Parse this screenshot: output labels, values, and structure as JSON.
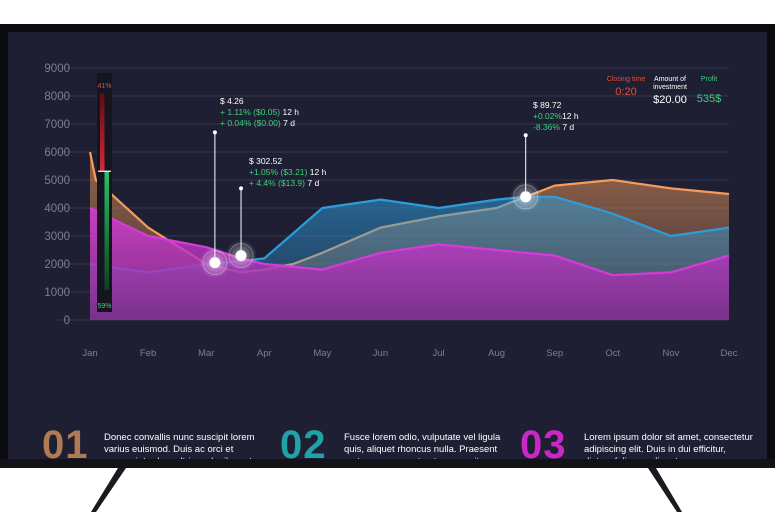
{
  "chart_data": {
    "type": "area",
    "title": "",
    "xlabel": "",
    "ylabel": "",
    "categories": [
      "Jan",
      "Feb",
      "Mar",
      "Apr",
      "May",
      "Jun",
      "Jul",
      "Aug",
      "Sep",
      "Oct",
      "Nov",
      "Dec"
    ],
    "yticks": [
      "9000",
      "8000",
      "7000",
      "6000",
      "5000",
      "4000",
      "3000",
      "2000",
      "1000",
      "0"
    ],
    "ylim": [
      0,
      9000
    ],
    "series": [
      {
        "name": "orange",
        "color": "#f39c5b",
        "x": [
          0,
          0.1,
          1,
          2,
          2.6,
          3,
          3.5,
          4,
          5,
          6,
          7,
          7.5,
          8,
          9,
          10,
          11
        ],
        "values": [
          6000,
          5000,
          3300,
          2000,
          1700,
          1800,
          2000,
          2400,
          3300,
          3700,
          4000,
          4400,
          4800,
          5000,
          4700,
          4500
        ]
      },
      {
        "name": "blue",
        "color": "#2d9cdb",
        "x": [
          0,
          1,
          2,
          2.6,
          3,
          4,
          5,
          6,
          7,
          7.5,
          8,
          9,
          10,
          11
        ],
        "values": [
          2000,
          1700,
          2000,
          2100,
          2200,
          4000,
          4300,
          4000,
          4300,
          4400,
          4400,
          3800,
          3000,
          3300
        ]
      },
      {
        "name": "magenta",
        "color": "#d63bd9",
        "x": [
          0,
          1,
          2,
          2.6,
          3,
          4,
          5,
          6,
          7,
          8,
          9,
          10,
          11
        ],
        "values": [
          4000,
          3000,
          2600,
          2200,
          2000,
          1800,
          2400,
          2700,
          2500,
          2300,
          1600,
          1700,
          2300
        ]
      }
    ],
    "gauge": {
      "top_label": "41%",
      "bottom_label": "59%",
      "red_fraction": 0.41,
      "green_fraction": 0.59
    },
    "markers": [
      {
        "x": 2.15,
        "y": 2050,
        "tooltip_x": 2.15,
        "tooltip_y": 6700
      },
      {
        "x": 2.6,
        "y": 2300,
        "tooltip_x": 2.6,
        "tooltip_y": 4700
      },
      {
        "x": 7.5,
        "y": 4400,
        "tooltip_x": 7.5,
        "tooltip_y": 6600
      }
    ]
  },
  "stats": [
    {
      "label": "Closing time",
      "value": "0:20",
      "color": "#e74c3c"
    },
    {
      "label": "Amount of investment",
      "value": "$20.00",
      "color": "#ffffff"
    },
    {
      "label": "Profit",
      "value": "535$",
      "color": "#3fd07a"
    }
  ],
  "tooltips": [
    {
      "price": "$ 4.26",
      "line1": "+ 1.11% ($0.05)",
      "line1_period": "12 h",
      "line2": "+ 0.04% ($0.00)",
      "line2_period": "7 d"
    },
    {
      "price": "$ 302.52",
      "line1": "+1.05% ($3.21)",
      "line1_period": "12 h",
      "line2": "+ 4.4% ($13.9)",
      "line2_period": "7 d"
    },
    {
      "price": "$ 89.72",
      "line1": "+0.02%",
      "line1_period": "12 h",
      "line2": "-8.36%",
      "line2_period": "7 d"
    }
  ],
  "footer": [
    {
      "number": "01",
      "text": "Donec convallis nunc suscipit lorem varius euismod. Duis ac orci et magna interdum ultrices dapibus et mauris.",
      "color": "#b07a55"
    },
    {
      "number": "02",
      "text": "Fusce lorem odio, vulputate vel ligula quis, aliquet rhoncus nulla. Praesent metus augue, porta ut cursus vitae",
      "color": "#1fa3a8"
    },
    {
      "number": "03",
      "text": "Lorem ipsum dolor sit amet, consectetur adipiscing elit. Duis in dui efficitur, dictum felis eu, aliquet eros.",
      "color": "#c829c4"
    }
  ]
}
